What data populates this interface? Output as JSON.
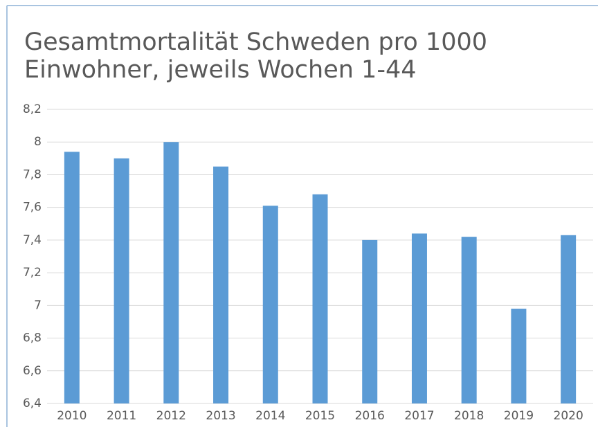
{
  "chart_data": {
    "type": "bar",
    "title": [
      "Gesamtmortalität Schweden pro 1000",
      "Einwohner, jeweils Wochen 1-44"
    ],
    "categories": [
      "2010",
      "2011",
      "2012",
      "2013",
      "2014",
      "2015",
      "2016",
      "2017",
      "2018",
      "2019",
      "2020"
    ],
    "values": [
      7.94,
      7.9,
      8.0,
      7.85,
      7.61,
      7.68,
      7.4,
      7.44,
      7.42,
      6.98,
      7.43
    ],
    "color": "#5b9bd5",
    "ylim": [
      6.4,
      8.2
    ],
    "yticks": [
      {
        "value": 6.4,
        "label": "6,4"
      },
      {
        "value": 6.6,
        "label": "6,6"
      },
      {
        "value": 6.8,
        "label": "6,8"
      },
      7,
      {
        "value": 7.2,
        "label": "7,2"
      },
      {
        "value": 7.4,
        "label": "7,4"
      },
      {
        "value": 7.6,
        "label": "7,6"
      },
      {
        "value": 7.8,
        "label": "7,8"
      },
      8,
      {
        "value": 8.2,
        "label": "8,2"
      }
    ],
    "grid": true
  }
}
